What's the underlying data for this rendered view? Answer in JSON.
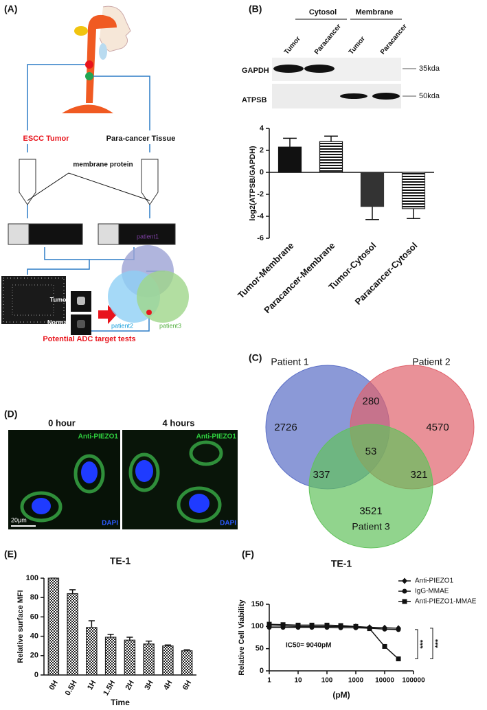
{
  "panel_a": {
    "label": "(A)",
    "tumor": "ESCC Tumor",
    "paracancer": "Para-cancer Tissue",
    "membrane_protein": "membrane protein",
    "array_tumor": "Tumor",
    "array_normal": "Normal",
    "patients": [
      "patient1",
      "patient2",
      "patient3"
    ],
    "result": "Potential ADC target tests"
  },
  "panel_b": {
    "label": "(B)",
    "fractions": [
      "Cytosol",
      "Membrane"
    ],
    "lanes": [
      "Tumor",
      "Paracancer",
      "Tumor",
      "Paracancer"
    ],
    "proteins": [
      "GAPDH",
      "ATPSB"
    ],
    "sizes": [
      "35kda",
      "50kda"
    ]
  },
  "panel_d": {
    "label": "(D)",
    "times": [
      "0 hour",
      "4 hours"
    ],
    "stains": [
      "Anti-PIEZO1",
      "Anti-PIEZO1"
    ],
    "dapi": [
      "DAPI",
      "DAPI"
    ],
    "scale_bar": "20μm"
  },
  "chart_data": [
    {
      "type": "bar",
      "ylabel": "log2(ATPSB/GAPDH)",
      "categories": [
        "Tumor-Membrane",
        "Paracancer-Membrane",
        "Tumor-Cytosol",
        "Paracancer-Cytosol"
      ],
      "values": [
        2.3,
        2.8,
        -3.1,
        -3.3
      ],
      "errors": [
        0.8,
        0.5,
        1.2,
        0.9
      ],
      "colors": [
        "#111111",
        "#111111",
        "#333333",
        "#333333"
      ],
      "hatch": [
        false,
        true,
        false,
        true
      ],
      "hatch_style": "horizontal",
      "ylim": [
        -6,
        4
      ],
      "yticks": [
        -6,
        -4,
        -2,
        0,
        2,
        4
      ]
    },
    {
      "type": "venn",
      "panel_label": "(C)",
      "sets": [
        "Patient 1",
        "Patient 2",
        "Patient 3"
      ],
      "colors": [
        "#5a6ec6",
        "#e0626c",
        "#62c25c"
      ],
      "values": [
        2726,
        4570,
        3521,
        280,
        337,
        321,
        53
      ]
    },
    {
      "type": "bar",
      "panel_label": "(E)",
      "title": "TE-1",
      "ylabel": "Relative surface MFI",
      "xlabel": "Time",
      "categories": [
        "0H",
        "0.5H",
        "1H",
        "1.5H",
        "2H",
        "3H",
        "4H",
        "6H"
      ],
      "values": [
        100,
        84,
        49,
        39,
        36,
        32,
        30,
        25
      ],
      "errors": [
        0,
        4,
        7,
        3,
        3,
        3,
        1,
        1
      ],
      "colors": [
        "#222222",
        "#222222",
        "#222222",
        "#222222",
        "#222222",
        "#222222",
        "#222222",
        "#222222"
      ],
      "hatch_style": "cross",
      "ylim": [
        0,
        100
      ],
      "yticks": [
        0,
        20,
        40,
        60,
        80,
        100
      ]
    },
    {
      "type": "line",
      "panel_label": "(F)",
      "title": "TE-1",
      "ylabel": "Relative Cell Viability",
      "xlabel": "(pM)",
      "log_x": true,
      "xlim": [
        1,
        100000
      ],
      "xticks": [
        1,
        10,
        100,
        1000,
        10000,
        100000
      ],
      "ylim": [
        0,
        150
      ],
      "yticks": [
        0,
        50,
        100,
        150
      ],
      "annotation": "IC50= 9040pM",
      "significance": [
        "***",
        "***"
      ],
      "x": [
        1,
        3,
        10,
        30,
        100,
        300,
        1000,
        3000,
        10000,
        30000
      ],
      "series": [
        {
          "name": "Anti-PIEZO1",
          "color": "#111111",
          "marker": "diamond",
          "values": [
            101,
            101,
            100,
            100,
            100,
            100,
            100,
            98,
            97,
            96
          ]
        },
        {
          "name": "IgG-MMAE",
          "color": "#111111",
          "marker": "circle",
          "values": [
            98,
            98,
            98,
            98,
            98,
            97,
            97,
            96,
            94,
            93
          ]
        },
        {
          "name": "Anti-PIEZO1-MMAE",
          "color": "#111111",
          "marker": "square",
          "values": [
            105,
            104,
            103,
            103,
            103,
            102,
            100,
            95,
            55,
            27
          ]
        }
      ]
    }
  ]
}
